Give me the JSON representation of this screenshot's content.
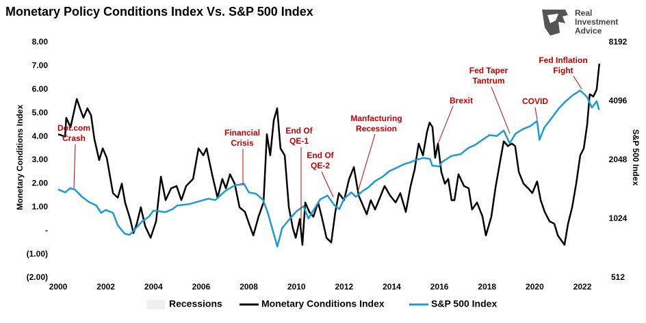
{
  "chart_data": {
    "type": "line",
    "title": "Monetary Policy Conditions Index Vs. S&P 500 Index",
    "ylabel": "Monetary Conditions Index",
    "y2label": "S&P 500 Index",
    "xlim": [
      2000,
      2022.8
    ],
    "xticks": [
      2000,
      2002,
      2004,
      2006,
      2008,
      2010,
      2012,
      2014,
      2016,
      2018,
      2020,
      2022
    ],
    "ylim": [
      -2,
      8
    ],
    "yticks": [
      {
        "value": 8,
        "label": "8.00"
      },
      {
        "value": 7,
        "label": "7.00"
      },
      {
        "value": 6,
        "label": "6.00"
      },
      {
        "value": 5,
        "label": "5.00"
      },
      {
        "value": 4,
        "label": "4.00"
      },
      {
        "value": 3,
        "label": "3.00"
      },
      {
        "value": 2,
        "label": "2.00"
      },
      {
        "value": 1,
        "label": "1.00"
      },
      {
        "value": 0,
        "label": "-"
      },
      {
        "value": -1,
        "label": "(1.00)"
      },
      {
        "value": -2,
        "label": "(2.00)"
      }
    ],
    "y2lim": [
      512,
      8192
    ],
    "y2scale": "log",
    "y2ticks": [
      512,
      1024,
      2048,
      4096,
      8192
    ],
    "grid": false,
    "legend": "bottom",
    "series": [
      {
        "name": "Recessions",
        "color": "#efefef"
      },
      {
        "name": "Monetary Conditions Index",
        "color": "#000000",
        "x": [
          2000.0,
          2000.29,
          2000.34,
          2000.52,
          2000.78,
          2000.95,
          2001.06,
          2001.23,
          2001.38,
          2001.52,
          2001.72,
          2001.87,
          2002.04,
          2002.3,
          2002.5,
          2002.67,
          2002.81,
          2003.02,
          2003.16,
          2003.3,
          2003.47,
          2003.65,
          2003.88,
          2004.11,
          2004.31,
          2004.51,
          2004.74,
          2004.97,
          2005.17,
          2005.37,
          2005.66,
          2005.89,
          2006.09,
          2006.23,
          2006.46,
          2006.69,
          2006.89,
          2007.04,
          2007.21,
          2007.41,
          2007.61,
          2007.84,
          2008.01,
          2008.19,
          2008.41,
          2008.62,
          2008.76,
          2008.9,
          2009.05,
          2009.19,
          2009.33,
          2009.51,
          2009.68,
          2009.85,
          2009.97,
          2010.14,
          2010.25,
          2010.37,
          2010.54,
          2010.71,
          2010.91,
          2011.06,
          2011.26,
          2011.46,
          2011.63,
          2011.78,
          2012.0,
          2012.21,
          2012.41,
          2012.61,
          2012.78,
          2012.95,
          2013.12,
          2013.3,
          2013.5,
          2013.7,
          2013.93,
          2014.16,
          2014.36,
          2014.59,
          2014.79,
          2014.96,
          2015.13,
          2015.31,
          2015.48,
          2015.59,
          2015.71,
          2015.82,
          2015.94,
          2016.08,
          2016.23,
          2016.37,
          2016.51,
          2016.63,
          2016.8,
          2017.03,
          2017.23,
          2017.37,
          2017.58,
          2017.81,
          2017.95,
          2018.18,
          2018.35,
          2018.52,
          2018.7,
          2018.87,
          2019.04,
          2019.18,
          2019.33,
          2019.53,
          2019.73,
          2019.9,
          2020.1,
          2020.25,
          2020.42,
          2020.62,
          2020.82,
          2020.97,
          2021.11,
          2021.25,
          2021.4,
          2021.57,
          2021.74,
          2021.91,
          2022.06,
          2022.2,
          2022.31,
          2022.46,
          2022.6,
          2022.71
        ],
        "values": [
          4.1,
          4.0,
          4.8,
          4.4,
          5.6,
          5.1,
          4.8,
          5.2,
          4.9,
          3.9,
          3.0,
          3.5,
          3.1,
          1.6,
          1.4,
          2.0,
          1.2,
          0.5,
          -0.1,
          0.3,
          1.0,
          0.2,
          -0.3,
          0.4,
          2.3,
          1.3,
          1.8,
          1.9,
          1.3,
          1.9,
          2.2,
          3.5,
          3.2,
          3.5,
          2.4,
          1.4,
          2.2,
          1.8,
          2.4,
          2.0,
          1.0,
          0.8,
          0.3,
          -0.2,
          0.6,
          1.2,
          4.1,
          3.2,
          4.7,
          5.2,
          3.5,
          3.2,
          1.0,
          0.1,
          -0.3,
          0.5,
          -0.6,
          1.2,
          0.8,
          0.6,
          1.2,
          0.6,
          -0.3,
          -0.5,
          0.8,
          1.6,
          1.3,
          2.2,
          2.7,
          1.5,
          1.1,
          0.7,
          1.3,
          0.9,
          1.4,
          1.9,
          1.5,
          1.2,
          1.6,
          0.8,
          1.9,
          2.6,
          3.7,
          3.2,
          4.2,
          4.6,
          4.4,
          3.1,
          3.7,
          2.5,
          2.0,
          2.2,
          1.3,
          1.3,
          2.4,
          1.9,
          1.8,
          0.9,
          1.2,
          0.6,
          -0.2,
          0.6,
          1.8,
          2.8,
          3.8,
          3.6,
          3.7,
          3.6,
          2.5,
          2.0,
          1.8,
          1.6,
          2.1,
          1.3,
          0.8,
          0.4,
          0.3,
          -0.2,
          -0.4,
          -0.6,
          0.3,
          1.0,
          2.0,
          3.2,
          3.5,
          4.5,
          5.8,
          5.7,
          6.0,
          7.1
        ]
      },
      {
        "name": "S&P 500 Index",
        "color": "#1b9ad6",
        "axis": "y2",
        "x": [
          2000.0,
          2000.3,
          2000.5,
          2000.7,
          2001.0,
          2001.3,
          2001.6,
          2001.8,
          2002.0,
          2002.3,
          2002.5,
          2002.8,
          2003.0,
          2003.2,
          2003.5,
          2003.8,
          2004.0,
          2004.5,
          2004.8,
          2005.0,
          2005.5,
          2005.9,
          2006.3,
          2006.6,
          2007.0,
          2007.4,
          2007.8,
          2008.0,
          2008.3,
          2008.6,
          2008.8,
          2009.0,
          2009.2,
          2009.4,
          2009.7,
          2010.0,
          2010.3,
          2010.5,
          2010.8,
          2011.0,
          2011.3,
          2011.6,
          2011.8,
          2012.0,
          2012.3,
          2012.5,
          2012.8,
          2013.0,
          2013.3,
          2013.6,
          2013.9,
          2014.2,
          2014.5,
          2014.8,
          2015.0,
          2015.3,
          2015.6,
          2015.7,
          2016.0,
          2016.1,
          2016.5,
          2016.9,
          2017.2,
          2017.5,
          2017.9,
          2018.1,
          2018.4,
          2018.7,
          2018.95,
          2019.2,
          2019.5,
          2019.8,
          2020.1,
          2020.2,
          2020.4,
          2020.7,
          2021.0,
          2021.3,
          2021.6,
          2021.9,
          2022.0,
          2022.2,
          2022.4,
          2022.6,
          2022.7
        ],
        "values": [
          1450,
          1400,
          1470,
          1450,
          1330,
          1250,
          1200,
          1100,
          1140,
          1100,
          950,
          860,
          850,
          900,
          990,
          1050,
          1130,
          1110,
          1150,
          1200,
          1220,
          1260,
          1300,
          1280,
          1420,
          1520,
          1550,
          1400,
          1380,
          1280,
          1100,
          900,
          740,
          920,
          1020,
          1120,
          1190,
          1030,
          1180,
          1290,
          1350,
          1200,
          1150,
          1300,
          1400,
          1330,
          1430,
          1480,
          1600,
          1680,
          1800,
          1870,
          1950,
          2000,
          2050,
          2100,
          2080,
          1920,
          1900,
          2000,
          2150,
          2200,
          2360,
          2450,
          2650,
          2750,
          2720,
          2900,
          2500,
          2800,
          2950,
          3050,
          3250,
          2600,
          3000,
          3350,
          3750,
          4100,
          4400,
          4650,
          4550,
          4300,
          3800,
          4100,
          3700
        ]
      }
    ],
    "annotations": [
      {
        "lines": [
          "Dot.com",
          "Crash"
        ]
      },
      {
        "lines": [
          "Financial",
          "Crisis"
        ]
      },
      {
        "lines": [
          "End Of",
          "QE-1"
        ]
      },
      {
        "lines": [
          "End Of",
          "QE-2"
        ]
      },
      {
        "lines": [
          "Manfacturing",
          "Recession"
        ]
      },
      {
        "lines": [
          "Brexit"
        ]
      },
      {
        "lines": [
          "Fed Taper",
          "Tantrum"
        ]
      },
      {
        "lines": [
          "COVID"
        ]
      },
      {
        "lines": [
          "Fed Inflation",
          "Fight"
        ]
      }
    ]
  },
  "logo": {
    "lines": [
      "Real",
      "Investment",
      "Advice"
    ]
  }
}
